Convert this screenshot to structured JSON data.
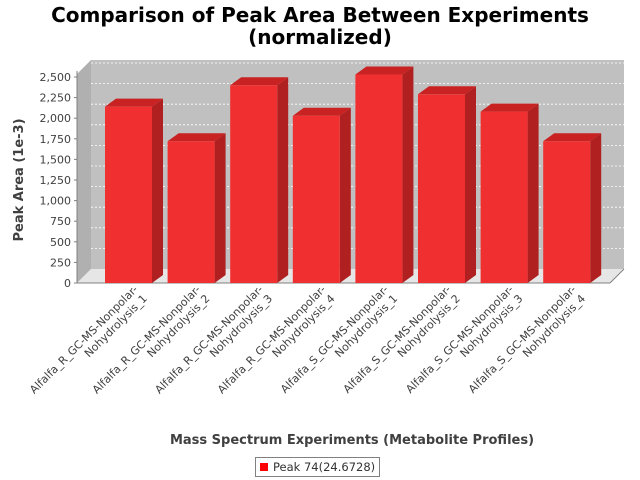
{
  "chart_data": {
    "type": "bar",
    "title_line1": "Comparison of Peak Area Between Experiments",
    "title_line2": "(normalized)",
    "xlabel": "Mass Spectrum Experiments (Metabolite Profiles)",
    "ylabel": "Peak Area (1e-3)",
    "ylim": [
      0,
      2500
    ],
    "yticks": [
      "0",
      "250",
      "500",
      "750",
      "1,000",
      "1,250",
      "1,500",
      "1,750",
      "2,000",
      "2,250",
      "2,500"
    ],
    "grid": true,
    "legend_position": "bottom",
    "categories": [
      [
        "Alfalfa_R_GC-MS-Nonpolar-",
        "Nohydrolysis_1"
      ],
      [
        "Alfalfa_R_GC-MS-Nonpolar-",
        "Nohydrolysis_2"
      ],
      [
        "Alfalfa_R_GC-MS-Nonpolar-",
        "Nohydrolysis_3"
      ],
      [
        "Alfalfa_R_GC-MS-Nonpolar-",
        "Nohydrolysis_4"
      ],
      [
        "Alfalfa_S_GC-MS-Nonpolar-",
        "Nohydrolysis_1"
      ],
      [
        "Alfalfa_S_GC-MS-Nonpolar-",
        "Nohydrolysis_2"
      ],
      [
        "Alfalfa_S_GC-MS-Nonpolar-",
        "Nohydrolysis_3"
      ],
      [
        "Alfalfa_S_GC-MS-Nonpolar-",
        "Nohydrolysis_4"
      ]
    ],
    "series": [
      {
        "name": "Peak 74(24.6728)",
        "color": "#ff0000",
        "values": [
          2140,
          1720,
          2400,
          2030,
          2530,
          2290,
          2080,
          1720
        ]
      }
    ]
  }
}
